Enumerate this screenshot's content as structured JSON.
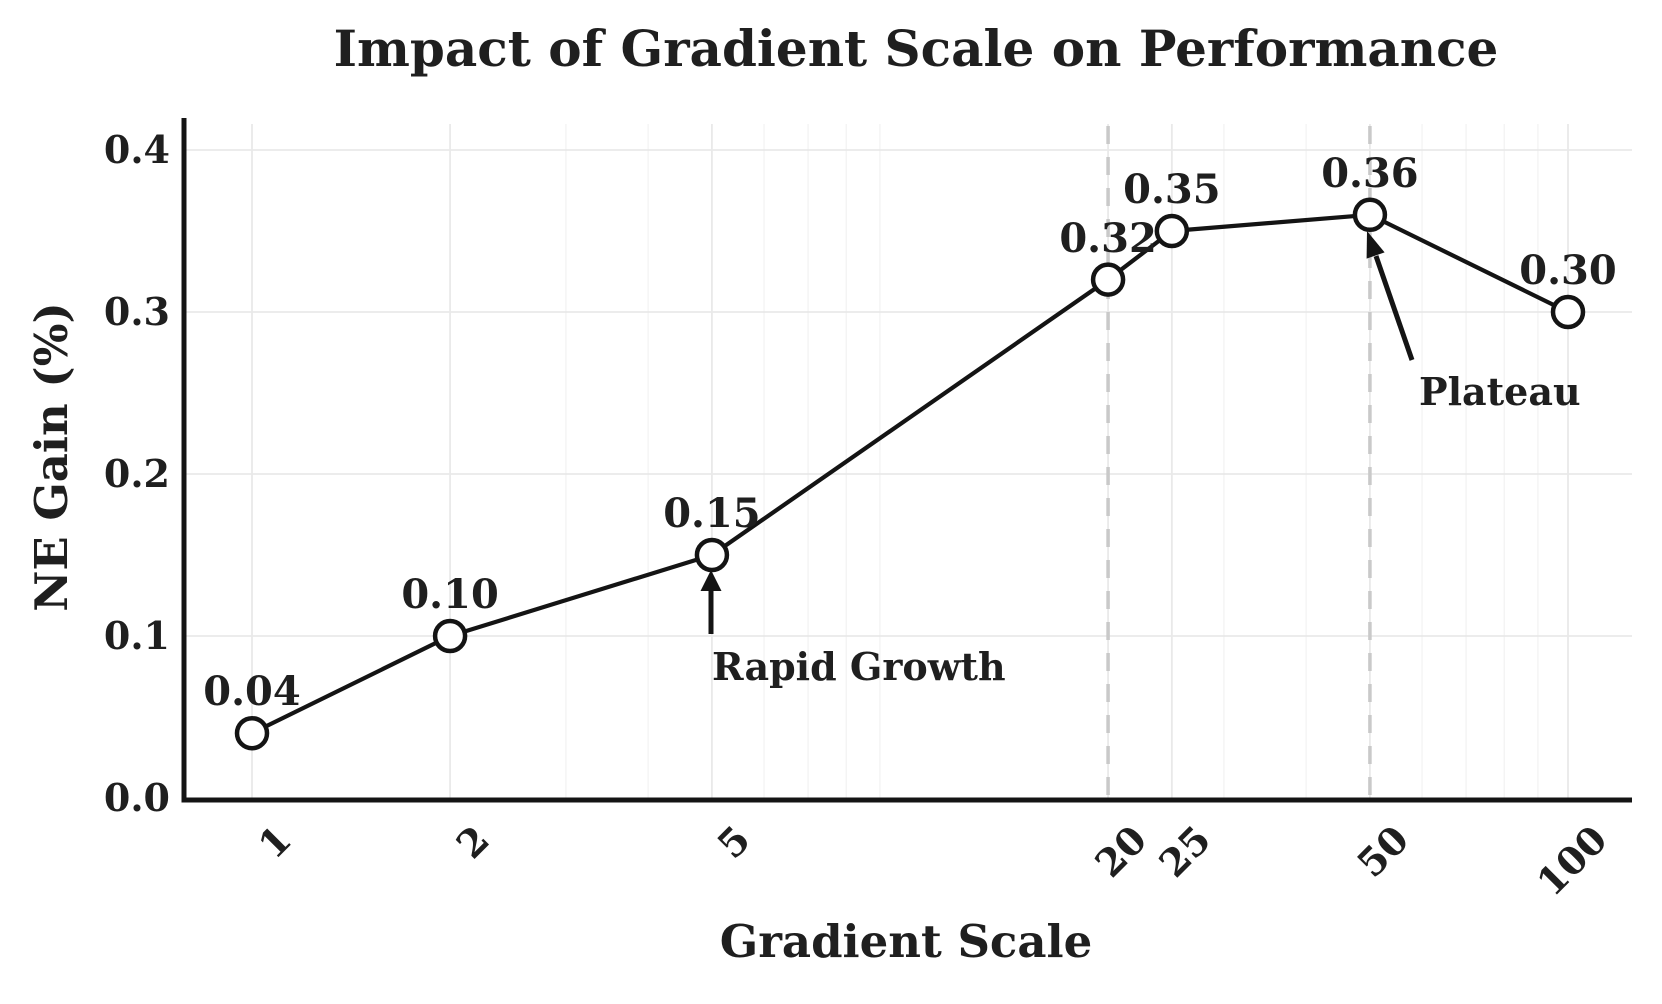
{
  "figure": {
    "background_color": "#ffffff",
    "text_color": "#1f1f1f"
  },
  "chart_data": {
    "type": "line",
    "title": "Impact of Gradient Scale on Performance",
    "xlabel": "Gradient Scale",
    "ylabel": "NE Gain (%)",
    "x_scale": "log",
    "x": [
      1,
      2,
      5,
      20,
      25,
      50,
      100
    ],
    "y": [
      0.04,
      0.1,
      0.15,
      0.32,
      0.35,
      0.36,
      0.3
    ],
    "point_labels": [
      "0.04",
      "0.10",
      "0.15",
      "0.32",
      "0.35",
      "0.36",
      "0.30"
    ],
    "x_tick_labels": [
      "1",
      "2",
      "5",
      "20",
      "25",
      "50",
      "100"
    ],
    "y_tick_values": [
      0.0,
      0.1,
      0.2,
      0.3,
      0.4
    ],
    "y_tick_labels": [
      "0.0",
      "0.1",
      "0.2",
      "0.3",
      "0.4"
    ],
    "ylim": [
      0.0,
      0.42
    ],
    "grid": true,
    "legend": "none",
    "reference_lines_x": [
      20,
      50
    ],
    "annotations": [
      {
        "label": "Rapid Growth",
        "target_x": 5,
        "target_y": 0.15
      },
      {
        "label": "Plateau",
        "target_x": 50,
        "target_y": 0.36
      }
    ],
    "styles": {
      "line_color": "#141414",
      "marker": "open-circle",
      "marker_fill": "#ffffff",
      "major_grid_color": "#e9e9e9",
      "minor_grid_color": "#f4f4f4",
      "reference_line_color": "#c9c9c9",
      "spine_color": "#141414"
    }
  }
}
